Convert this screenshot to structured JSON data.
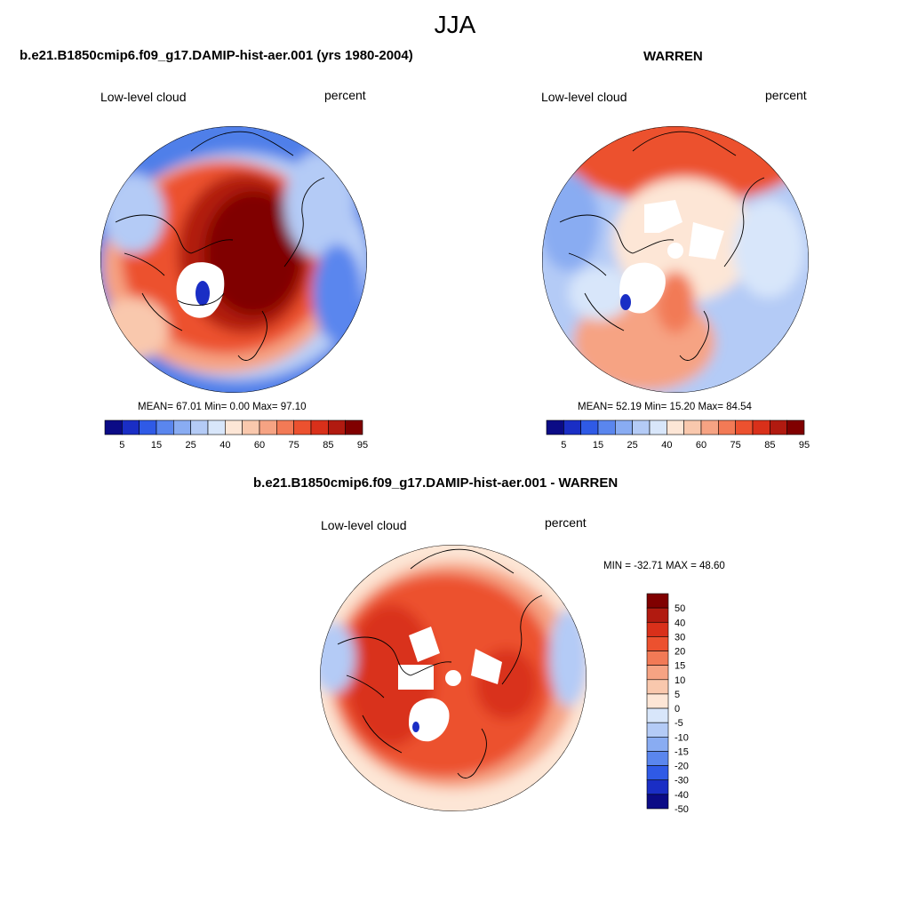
{
  "figure": {
    "title": "JJA"
  },
  "panels": [
    {
      "title": "b.e21.B1850cmip6.f09_g17.DAMIP-hist-aer.001 (yrs 1980-2004)",
      "variable": "Low-level cloud",
      "units": "percent",
      "stats": "MEAN=  67.01  Min=   0.00  Max=  97.10"
    },
    {
      "title": "WARREN",
      "variable": "Low-level cloud",
      "units": "percent",
      "stats": "MEAN=  52.19  Min=  15.20  Max=  84.54"
    },
    {
      "title": "b.e21.B1850cmip6.f09_g17.DAMIP-hist-aer.001 - WARREN",
      "variable": "Low-level cloud",
      "units": "percent",
      "stats": "MIN = -32.71 MAX =  48.60"
    }
  ],
  "colorbar_abs": {
    "labels": [
      "5",
      "15",
      "25",
      "40",
      "60",
      "75",
      "85",
      "95"
    ],
    "colors": [
      "#0b0b86",
      "#1a2ec5",
      "#2f5ae6",
      "#5a86ee",
      "#89acf2",
      "#b4cbf6",
      "#d8e6fa",
      "#fde6d6",
      "#f9c8ad",
      "#f6a383",
      "#f27a56",
      "#ec512f",
      "#d9301a",
      "#b11a10",
      "#800000"
    ]
  },
  "colorbar_diff": {
    "labels": [
      "50",
      "40",
      "30",
      "20",
      "15",
      "10",
      "5",
      "0",
      "-5",
      "-10",
      "-15",
      "-20",
      "-30",
      "-40",
      "-50"
    ],
    "colors": [
      "#800000",
      "#b11a10",
      "#d9301a",
      "#ec512f",
      "#f27a56",
      "#f6a383",
      "#f9c8ad",
      "#fde6d6",
      "#d8e6fa",
      "#b4cbf6",
      "#89acf2",
      "#5a86ee",
      "#2f5ae6",
      "#1a2ec5",
      "#0b0b86"
    ]
  }
}
